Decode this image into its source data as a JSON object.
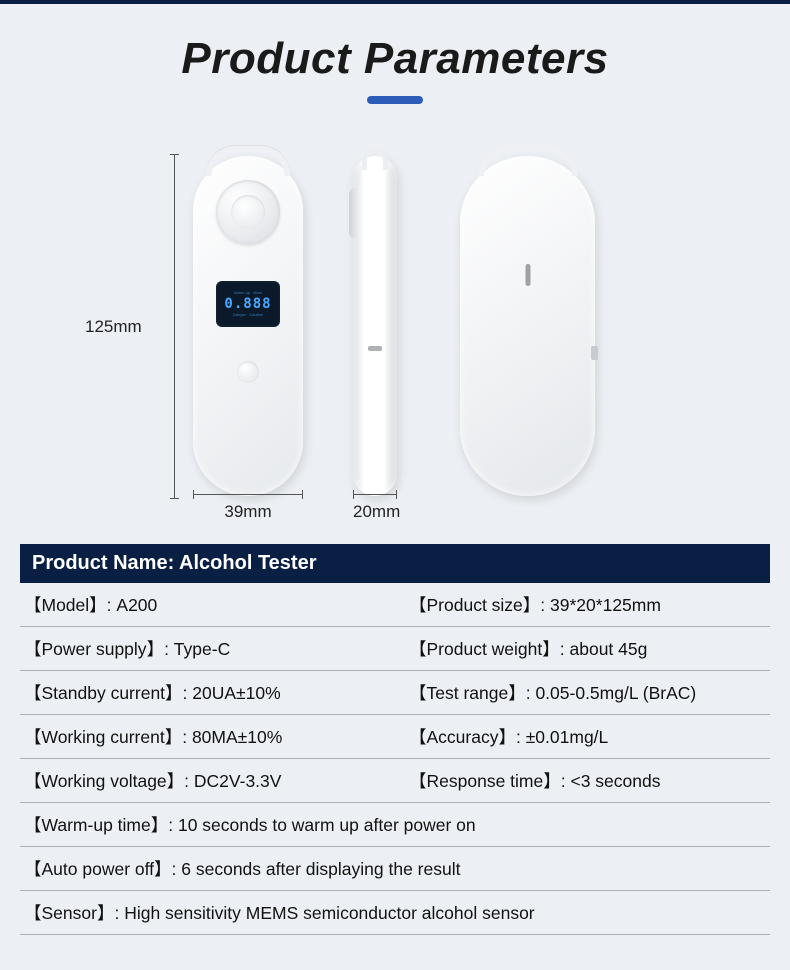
{
  "title": "Product Parameters",
  "colors": {
    "page_bg": "#ecf0f4",
    "top_border": "#0a1f44",
    "accent": "#2b5cb8",
    "header_bg": "#0a1f44",
    "header_text": "#ffffff",
    "text": "#111111",
    "row_border": "#a9b0b8",
    "screen_bg": "#0a1a2a",
    "screen_digits": "#4aa8ff"
  },
  "dimensions": {
    "height_label": "125mm",
    "width_label": "39mm",
    "depth_label": "20mm"
  },
  "screen_digits": "0.888",
  "spec_header": "Product Name: Alcohol Tester",
  "specs": [
    {
      "label": "Model",
      "value": "A200",
      "span": "half"
    },
    {
      "label": "Product size",
      "value": "39*20*125mm",
      "span": "half"
    },
    {
      "label": "Power supply",
      "value": "Type-C",
      "span": "half"
    },
    {
      "label": "Product weight",
      "value": "about 45g",
      "span": "half"
    },
    {
      "label": "Standby current",
      "value": "20UA±10%",
      "span": "half"
    },
    {
      "label": "Test range",
      "value": "0.05-0.5mg/L (BrAC)",
      "span": "half"
    },
    {
      "label": "Working current",
      "value": "80MA±10%",
      "span": "half"
    },
    {
      "label": "Accuracy",
      "value": "±0.01mg/L",
      "span": "half"
    },
    {
      "label": "Working voltage",
      "value": "DC2V-3.3V",
      "span": "half"
    },
    {
      "label": "Response time",
      "value": "<3 seconds",
      "span": "half"
    },
    {
      "label": "Warm-up time",
      "value": "10 seconds to warm up after power on",
      "span": "full"
    },
    {
      "label": "Auto power off",
      "value": "6 seconds after displaying the result",
      "span": "full"
    },
    {
      "label": "Sensor",
      "value": "High sensitivity MEMS semiconductor alcohol sensor",
      "span": "full"
    }
  ]
}
